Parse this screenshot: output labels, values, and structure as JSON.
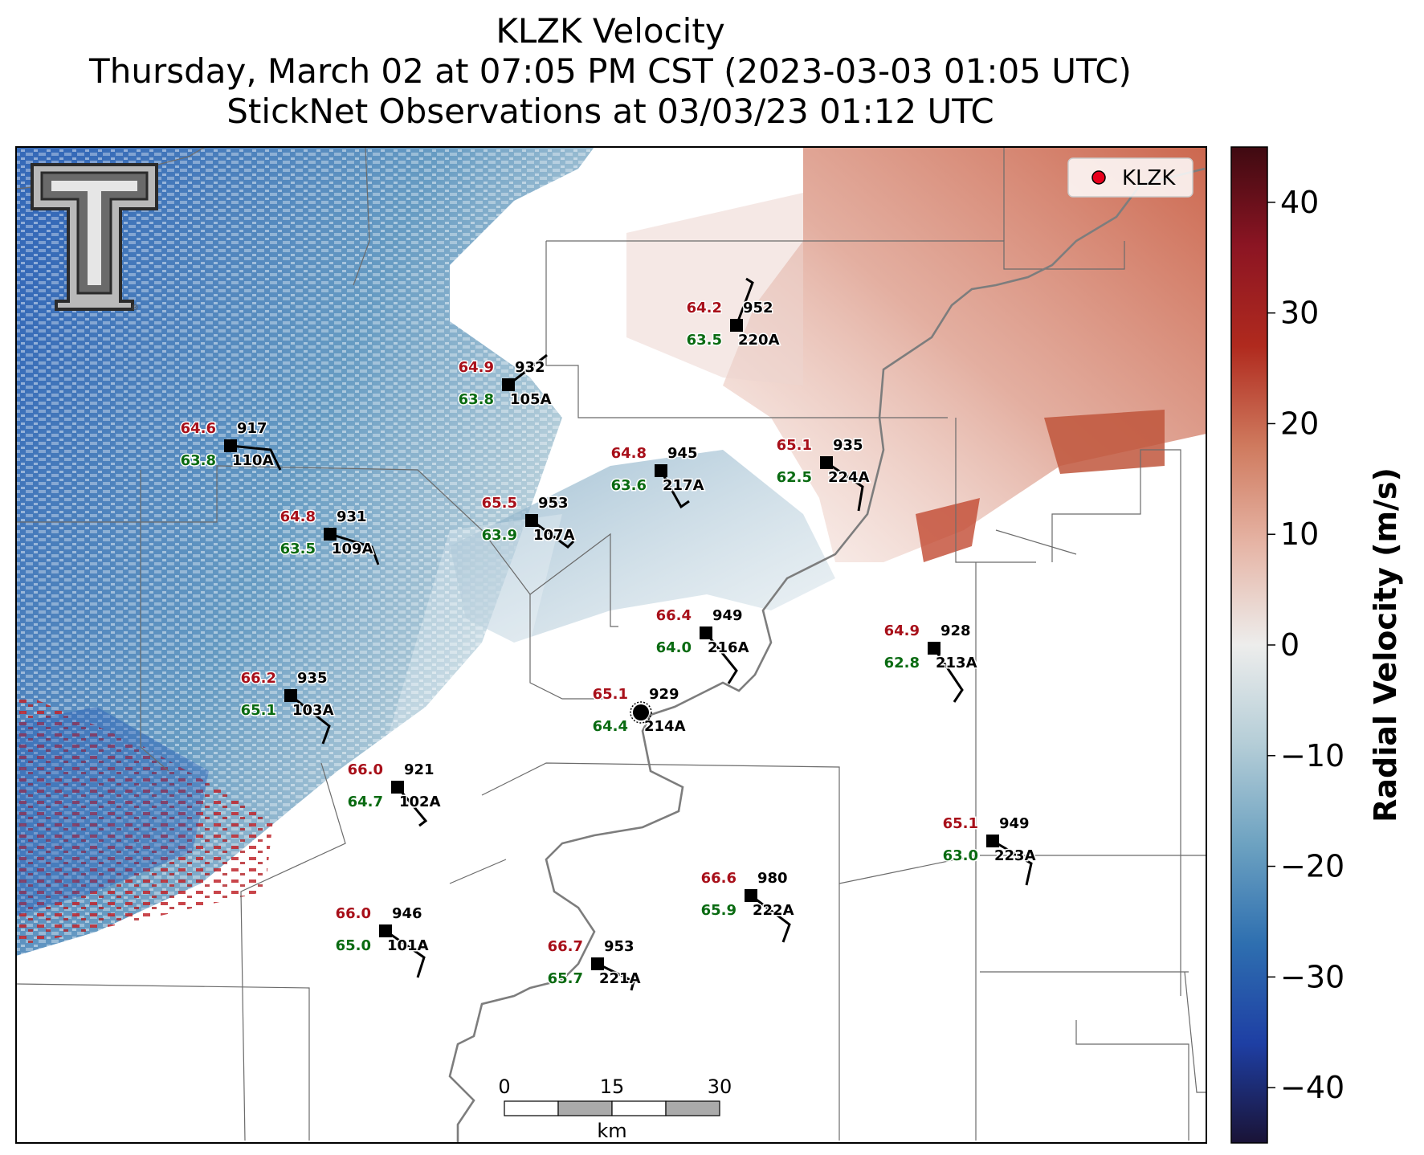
{
  "header": {
    "title": "KLZK Velocity",
    "subtitle": "Thursday, March 02 at 07:05 PM CST (2023-03-03 01:05 UTC)",
    "observations": "StickNet Observations at 03/03/23 01:12 UTC"
  },
  "legend": {
    "marker_label": "KLZK",
    "marker_color": "#e8001c"
  },
  "colorbar": {
    "label": "Radial Velocity (m/s)",
    "ticks": [
      "40",
      "30",
      "20",
      "10",
      "0",
      "−10",
      "−20",
      "−30",
      "−40"
    ],
    "range": [
      -45,
      45
    ],
    "colors": [
      "#1a1336",
      "#1e3fa4",
      "#2e6fb0",
      "#6da2c1",
      "#b4cdd7",
      "#ededec",
      "#e6b5a6",
      "#cf7a5e",
      "#b02a1e",
      "#8c1523",
      "#3f0a11"
    ]
  },
  "scalebar": {
    "labels": [
      "0",
      "15",
      "30"
    ],
    "unit": "km"
  },
  "logo": "texas-tech-double-t-logo",
  "stations": [
    {
      "id": "110A",
      "temp": "64.6",
      "dew": "63.8",
      "pres": "917"
    },
    {
      "id": "105A",
      "temp": "64.9",
      "dew": "63.8",
      "pres": "932"
    },
    {
      "id": "220A",
      "temp": "64.2",
      "dew": "63.5",
      "pres": "952"
    },
    {
      "id": "109A",
      "temp": "64.8",
      "dew": "63.5",
      "pres": "931"
    },
    {
      "id": "107A",
      "temp": "65.5",
      "dew": "63.9",
      "pres": "953"
    },
    {
      "id": "217A",
      "temp": "64.8",
      "dew": "63.6",
      "pres": "945"
    },
    {
      "id": "224A",
      "temp": "65.1",
      "dew": "62.5",
      "pres": "935"
    },
    {
      "id": "216A",
      "temp": "66.4",
      "dew": "64.0",
      "pres": "949"
    },
    {
      "id": "213A",
      "temp": "64.9",
      "dew": "62.8",
      "pres": "928"
    },
    {
      "id": "103A",
      "temp": "66.2",
      "dew": "65.1",
      "pres": "935"
    },
    {
      "id": "214A",
      "temp": "65.1",
      "dew": "64.4",
      "pres": "929"
    },
    {
      "id": "102A",
      "temp": "66.0",
      "dew": "64.7",
      "pres": "921"
    },
    {
      "id": "223A",
      "temp": "65.1",
      "dew": "63.0",
      "pres": "949"
    },
    {
      "id": "222A",
      "temp": "66.6",
      "dew": "65.9",
      "pres": "980"
    },
    {
      "id": "101A",
      "temp": "66.0",
      "dew": "65.0",
      "pres": "946"
    },
    {
      "id": "221A",
      "temp": "66.7",
      "dew": "65.7",
      "pres": "953"
    }
  ]
}
